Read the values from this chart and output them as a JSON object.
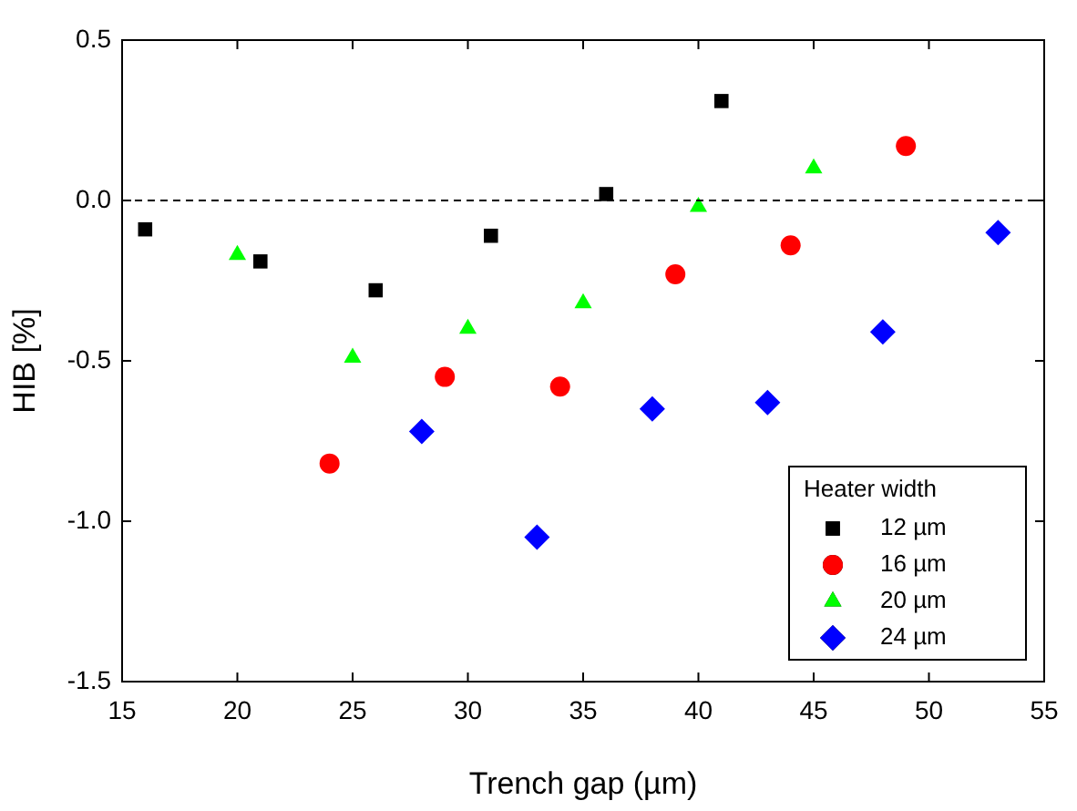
{
  "chart_data": {
    "type": "scatter",
    "xlabel": "Trench gap (µm)",
    "ylabel": "HIB [%]",
    "legend_title": "Heater width",
    "legend": "bottom right",
    "grid": false,
    "xlim": [
      15,
      55
    ],
    "xticks": [
      15,
      20,
      25,
      30,
      35,
      40,
      45,
      50,
      55
    ],
    "ylim": [
      -1.5,
      0.5
    ],
    "yticks": [
      {
        "value": -1.5,
        "label": "-1.5"
      },
      {
        "value": -1,
        "label": "-1.0"
      },
      {
        "value": -0.5,
        "label": "-0.5"
      },
      {
        "value": 0,
        "label": "0.0"
      },
      {
        "value": 0.5,
        "label": "0.5"
      }
    ],
    "ref_lines": [
      {
        "axis": "y",
        "value": 0,
        "color": "#000000",
        "line_style": "dashed"
      }
    ],
    "series": [
      {
        "name": "12 µm",
        "color": "#000000",
        "marker": "square",
        "x": [
          16,
          21,
          26,
          31,
          36,
          41
        ],
        "values": [
          -0.09,
          -0.19,
          -0.28,
          -0.11,
          0.02,
          0.31
        ]
      },
      {
        "name": "16 µm",
        "color": "#ff0000",
        "marker": "circle",
        "x": [
          24,
          29,
          34,
          39,
          44,
          49
        ],
        "values": [
          -0.82,
          -0.55,
          -0.58,
          -0.23,
          -0.14,
          0.17
        ]
      },
      {
        "name": "20 µm",
        "color": "#00ff00",
        "marker": "triangle",
        "x": [
          20,
          25,
          30,
          35,
          40,
          45
        ],
        "values": [
          -0.17,
          -0.49,
          -0.4,
          -0.32,
          -0.02,
          0.1
        ]
      },
      {
        "name": "24 µm",
        "color": "#0000ff",
        "marker": "diamond",
        "x": [
          28,
          33,
          38,
          43,
          48,
          53
        ],
        "values": [
          -0.72,
          -1.05,
          -0.65,
          -0.63,
          -0.41,
          -0.1
        ]
      }
    ]
  }
}
